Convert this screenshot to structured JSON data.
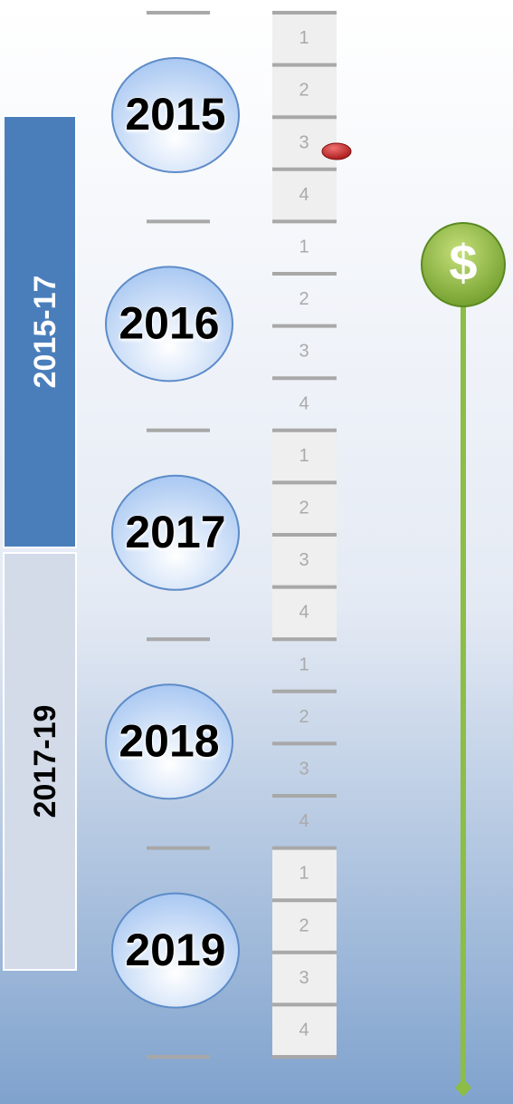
{
  "periods": [
    {
      "label": "2015-17"
    },
    {
      "label": "2017-19"
    }
  ],
  "years": [
    {
      "label": "2015",
      "quarters": [
        1,
        2,
        3,
        4
      ]
    },
    {
      "label": "2016",
      "quarters": [
        1,
        2,
        3,
        4
      ]
    },
    {
      "label": "2017",
      "quarters": [
        1,
        2,
        3,
        4
      ]
    },
    {
      "label": "2018",
      "quarters": [
        1,
        2,
        3,
        4
      ]
    },
    {
      "label": "2019",
      "quarters": [
        1,
        2,
        3,
        4
      ]
    }
  ],
  "marker": "$"
}
